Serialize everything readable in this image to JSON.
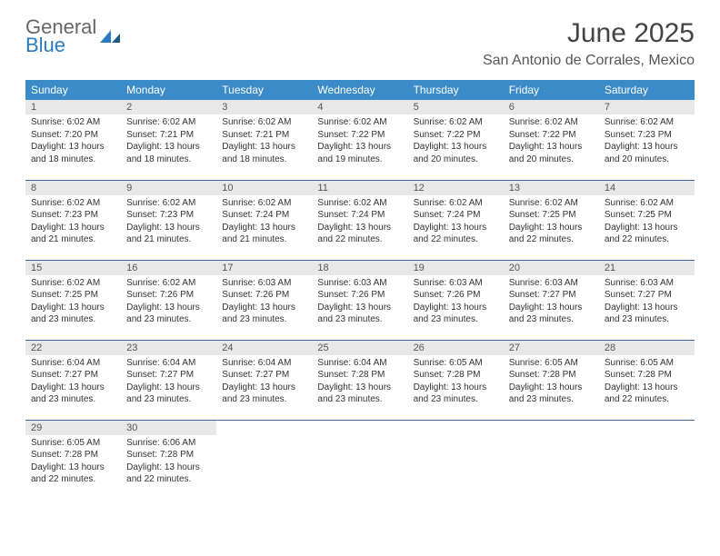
{
  "brand": {
    "name1": "General",
    "name2": "Blue",
    "text_color": "#666666",
    "accent_color": "#2b7bbf"
  },
  "title": "June 2025",
  "location": "San Antonio de Corrales, Mexico",
  "colors": {
    "header_bg": "#3b8bc9",
    "header_text": "#ffffff",
    "row_border": "#3b6a9a",
    "daynum_bg": "#e8e8e8",
    "body_text": "#333333"
  },
  "weekdays": [
    "Sunday",
    "Monday",
    "Tuesday",
    "Wednesday",
    "Thursday",
    "Friday",
    "Saturday"
  ],
  "days": [
    {
      "n": 1,
      "sunrise": "6:02 AM",
      "sunset": "7:20 PM",
      "daylight": "13 hours and 18 minutes."
    },
    {
      "n": 2,
      "sunrise": "6:02 AM",
      "sunset": "7:21 PM",
      "daylight": "13 hours and 18 minutes."
    },
    {
      "n": 3,
      "sunrise": "6:02 AM",
      "sunset": "7:21 PM",
      "daylight": "13 hours and 18 minutes."
    },
    {
      "n": 4,
      "sunrise": "6:02 AM",
      "sunset": "7:22 PM",
      "daylight": "13 hours and 19 minutes."
    },
    {
      "n": 5,
      "sunrise": "6:02 AM",
      "sunset": "7:22 PM",
      "daylight": "13 hours and 20 minutes."
    },
    {
      "n": 6,
      "sunrise": "6:02 AM",
      "sunset": "7:22 PM",
      "daylight": "13 hours and 20 minutes."
    },
    {
      "n": 7,
      "sunrise": "6:02 AM",
      "sunset": "7:23 PM",
      "daylight": "13 hours and 20 minutes."
    },
    {
      "n": 8,
      "sunrise": "6:02 AM",
      "sunset": "7:23 PM",
      "daylight": "13 hours and 21 minutes."
    },
    {
      "n": 9,
      "sunrise": "6:02 AM",
      "sunset": "7:23 PM",
      "daylight": "13 hours and 21 minutes."
    },
    {
      "n": 10,
      "sunrise": "6:02 AM",
      "sunset": "7:24 PM",
      "daylight": "13 hours and 21 minutes."
    },
    {
      "n": 11,
      "sunrise": "6:02 AM",
      "sunset": "7:24 PM",
      "daylight": "13 hours and 22 minutes."
    },
    {
      "n": 12,
      "sunrise": "6:02 AM",
      "sunset": "7:24 PM",
      "daylight": "13 hours and 22 minutes."
    },
    {
      "n": 13,
      "sunrise": "6:02 AM",
      "sunset": "7:25 PM",
      "daylight": "13 hours and 22 minutes."
    },
    {
      "n": 14,
      "sunrise": "6:02 AM",
      "sunset": "7:25 PM",
      "daylight": "13 hours and 22 minutes."
    },
    {
      "n": 15,
      "sunrise": "6:02 AM",
      "sunset": "7:25 PM",
      "daylight": "13 hours and 23 minutes."
    },
    {
      "n": 16,
      "sunrise": "6:02 AM",
      "sunset": "7:26 PM",
      "daylight": "13 hours and 23 minutes."
    },
    {
      "n": 17,
      "sunrise": "6:03 AM",
      "sunset": "7:26 PM",
      "daylight": "13 hours and 23 minutes."
    },
    {
      "n": 18,
      "sunrise": "6:03 AM",
      "sunset": "7:26 PM",
      "daylight": "13 hours and 23 minutes."
    },
    {
      "n": 19,
      "sunrise": "6:03 AM",
      "sunset": "7:26 PM",
      "daylight": "13 hours and 23 minutes."
    },
    {
      "n": 20,
      "sunrise": "6:03 AM",
      "sunset": "7:27 PM",
      "daylight": "13 hours and 23 minutes."
    },
    {
      "n": 21,
      "sunrise": "6:03 AM",
      "sunset": "7:27 PM",
      "daylight": "13 hours and 23 minutes."
    },
    {
      "n": 22,
      "sunrise": "6:04 AM",
      "sunset": "7:27 PM",
      "daylight": "13 hours and 23 minutes."
    },
    {
      "n": 23,
      "sunrise": "6:04 AM",
      "sunset": "7:27 PM",
      "daylight": "13 hours and 23 minutes."
    },
    {
      "n": 24,
      "sunrise": "6:04 AM",
      "sunset": "7:27 PM",
      "daylight": "13 hours and 23 minutes."
    },
    {
      "n": 25,
      "sunrise": "6:04 AM",
      "sunset": "7:28 PM",
      "daylight": "13 hours and 23 minutes."
    },
    {
      "n": 26,
      "sunrise": "6:05 AM",
      "sunset": "7:28 PM",
      "daylight": "13 hours and 23 minutes."
    },
    {
      "n": 27,
      "sunrise": "6:05 AM",
      "sunset": "7:28 PM",
      "daylight": "13 hours and 23 minutes."
    },
    {
      "n": 28,
      "sunrise": "6:05 AM",
      "sunset": "7:28 PM",
      "daylight": "13 hours and 22 minutes."
    },
    {
      "n": 29,
      "sunrise": "6:05 AM",
      "sunset": "7:28 PM",
      "daylight": "13 hours and 22 minutes."
    },
    {
      "n": 30,
      "sunrise": "6:06 AM",
      "sunset": "7:28 PM",
      "daylight": "13 hours and 22 minutes."
    }
  ],
  "labels": {
    "sunrise": "Sunrise: ",
    "sunset": "Sunset: ",
    "daylight": "Daylight: "
  },
  "layout": {
    "first_weekday_offset": 0,
    "weeks": 5
  }
}
